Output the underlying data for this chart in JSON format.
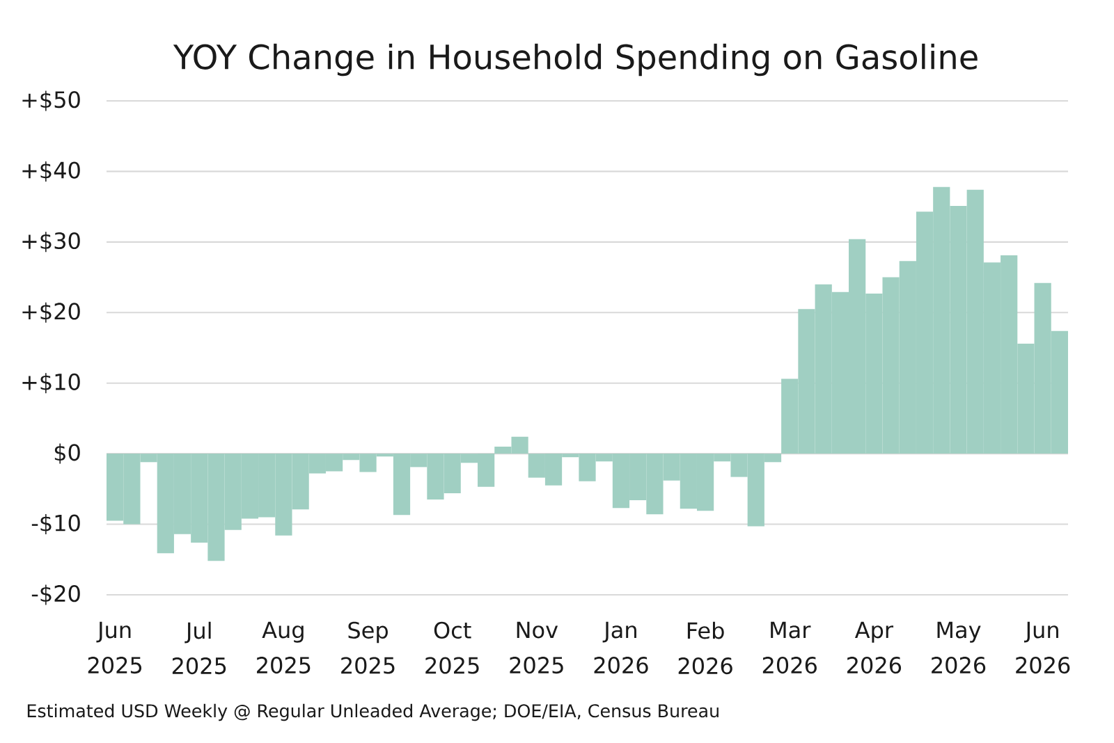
{
  "chart_data": {
    "type": "bar",
    "title": "YOY Change in Household Spending on Gasoline",
    "categories": [
      "Jun 2025",
      null,
      null,
      null,
      null,
      "Jul 2025",
      null,
      null,
      null,
      null,
      "Aug 2025",
      null,
      null,
      null,
      null,
      "Sep 2025",
      null,
      null,
      null,
      null,
      "Oct 2025",
      null,
      null,
      null,
      null,
      "Nov 2025",
      null,
      null,
      null,
      null,
      "Jan 2026",
      null,
      null,
      null,
      null,
      "Feb 2026",
      null,
      null,
      null,
      null,
      "Mar 2026",
      null,
      null,
      null,
      null,
      "Apr 2026",
      null,
      null,
      null,
      null,
      "May 2026",
      null,
      null,
      null,
      null,
      "Jun 2026",
      null
    ],
    "values": [
      -9.5,
      -10.0,
      -1.2,
      -14.1,
      -11.4,
      -12.6,
      -15.2,
      -10.8,
      -9.2,
      -9.0,
      -11.6,
      -7.9,
      -2.8,
      -2.5,
      -0.9,
      -2.6,
      -0.4,
      -8.7,
      -1.9,
      -6.5,
      -5.6,
      -1.3,
      -4.7,
      1.0,
      2.4,
      -3.4,
      -4.5,
      -0.5,
      -3.9,
      -1.1,
      -7.7,
      -6.6,
      -8.6,
      -3.8,
      -7.8,
      -8.1,
      -1.1,
      -3.3,
      -10.3,
      -1.2,
      10.6,
      20.5,
      24.0,
      22.9,
      30.4,
      22.7,
      25.0,
      27.3,
      34.3,
      37.8,
      35.1,
      37.4,
      27.1,
      28.1,
      15.6,
      24.2,
      17.4
    ],
    "color": "#a0cfc2",
    "ylim": [
      -20,
      50
    ],
    "yticks": [
      {
        "value": -20,
        "label": "-$20"
      },
      {
        "value": -10,
        "label": "-$10"
      },
      {
        "value": 0,
        "label": "$0"
      },
      {
        "value": 10,
        "label": "+$10"
      },
      {
        "value": 20,
        "label": "+$20"
      },
      {
        "value": 30,
        "label": "+$30"
      },
      {
        "value": 40,
        "label": "+$40"
      },
      {
        "value": 50,
        "label": "+$50"
      }
    ],
    "grid": "y",
    "annotations": [
      "Estimated USD Weekly @ Regular Unleaded Average; DOE/EIA, Census Bureau"
    ]
  }
}
